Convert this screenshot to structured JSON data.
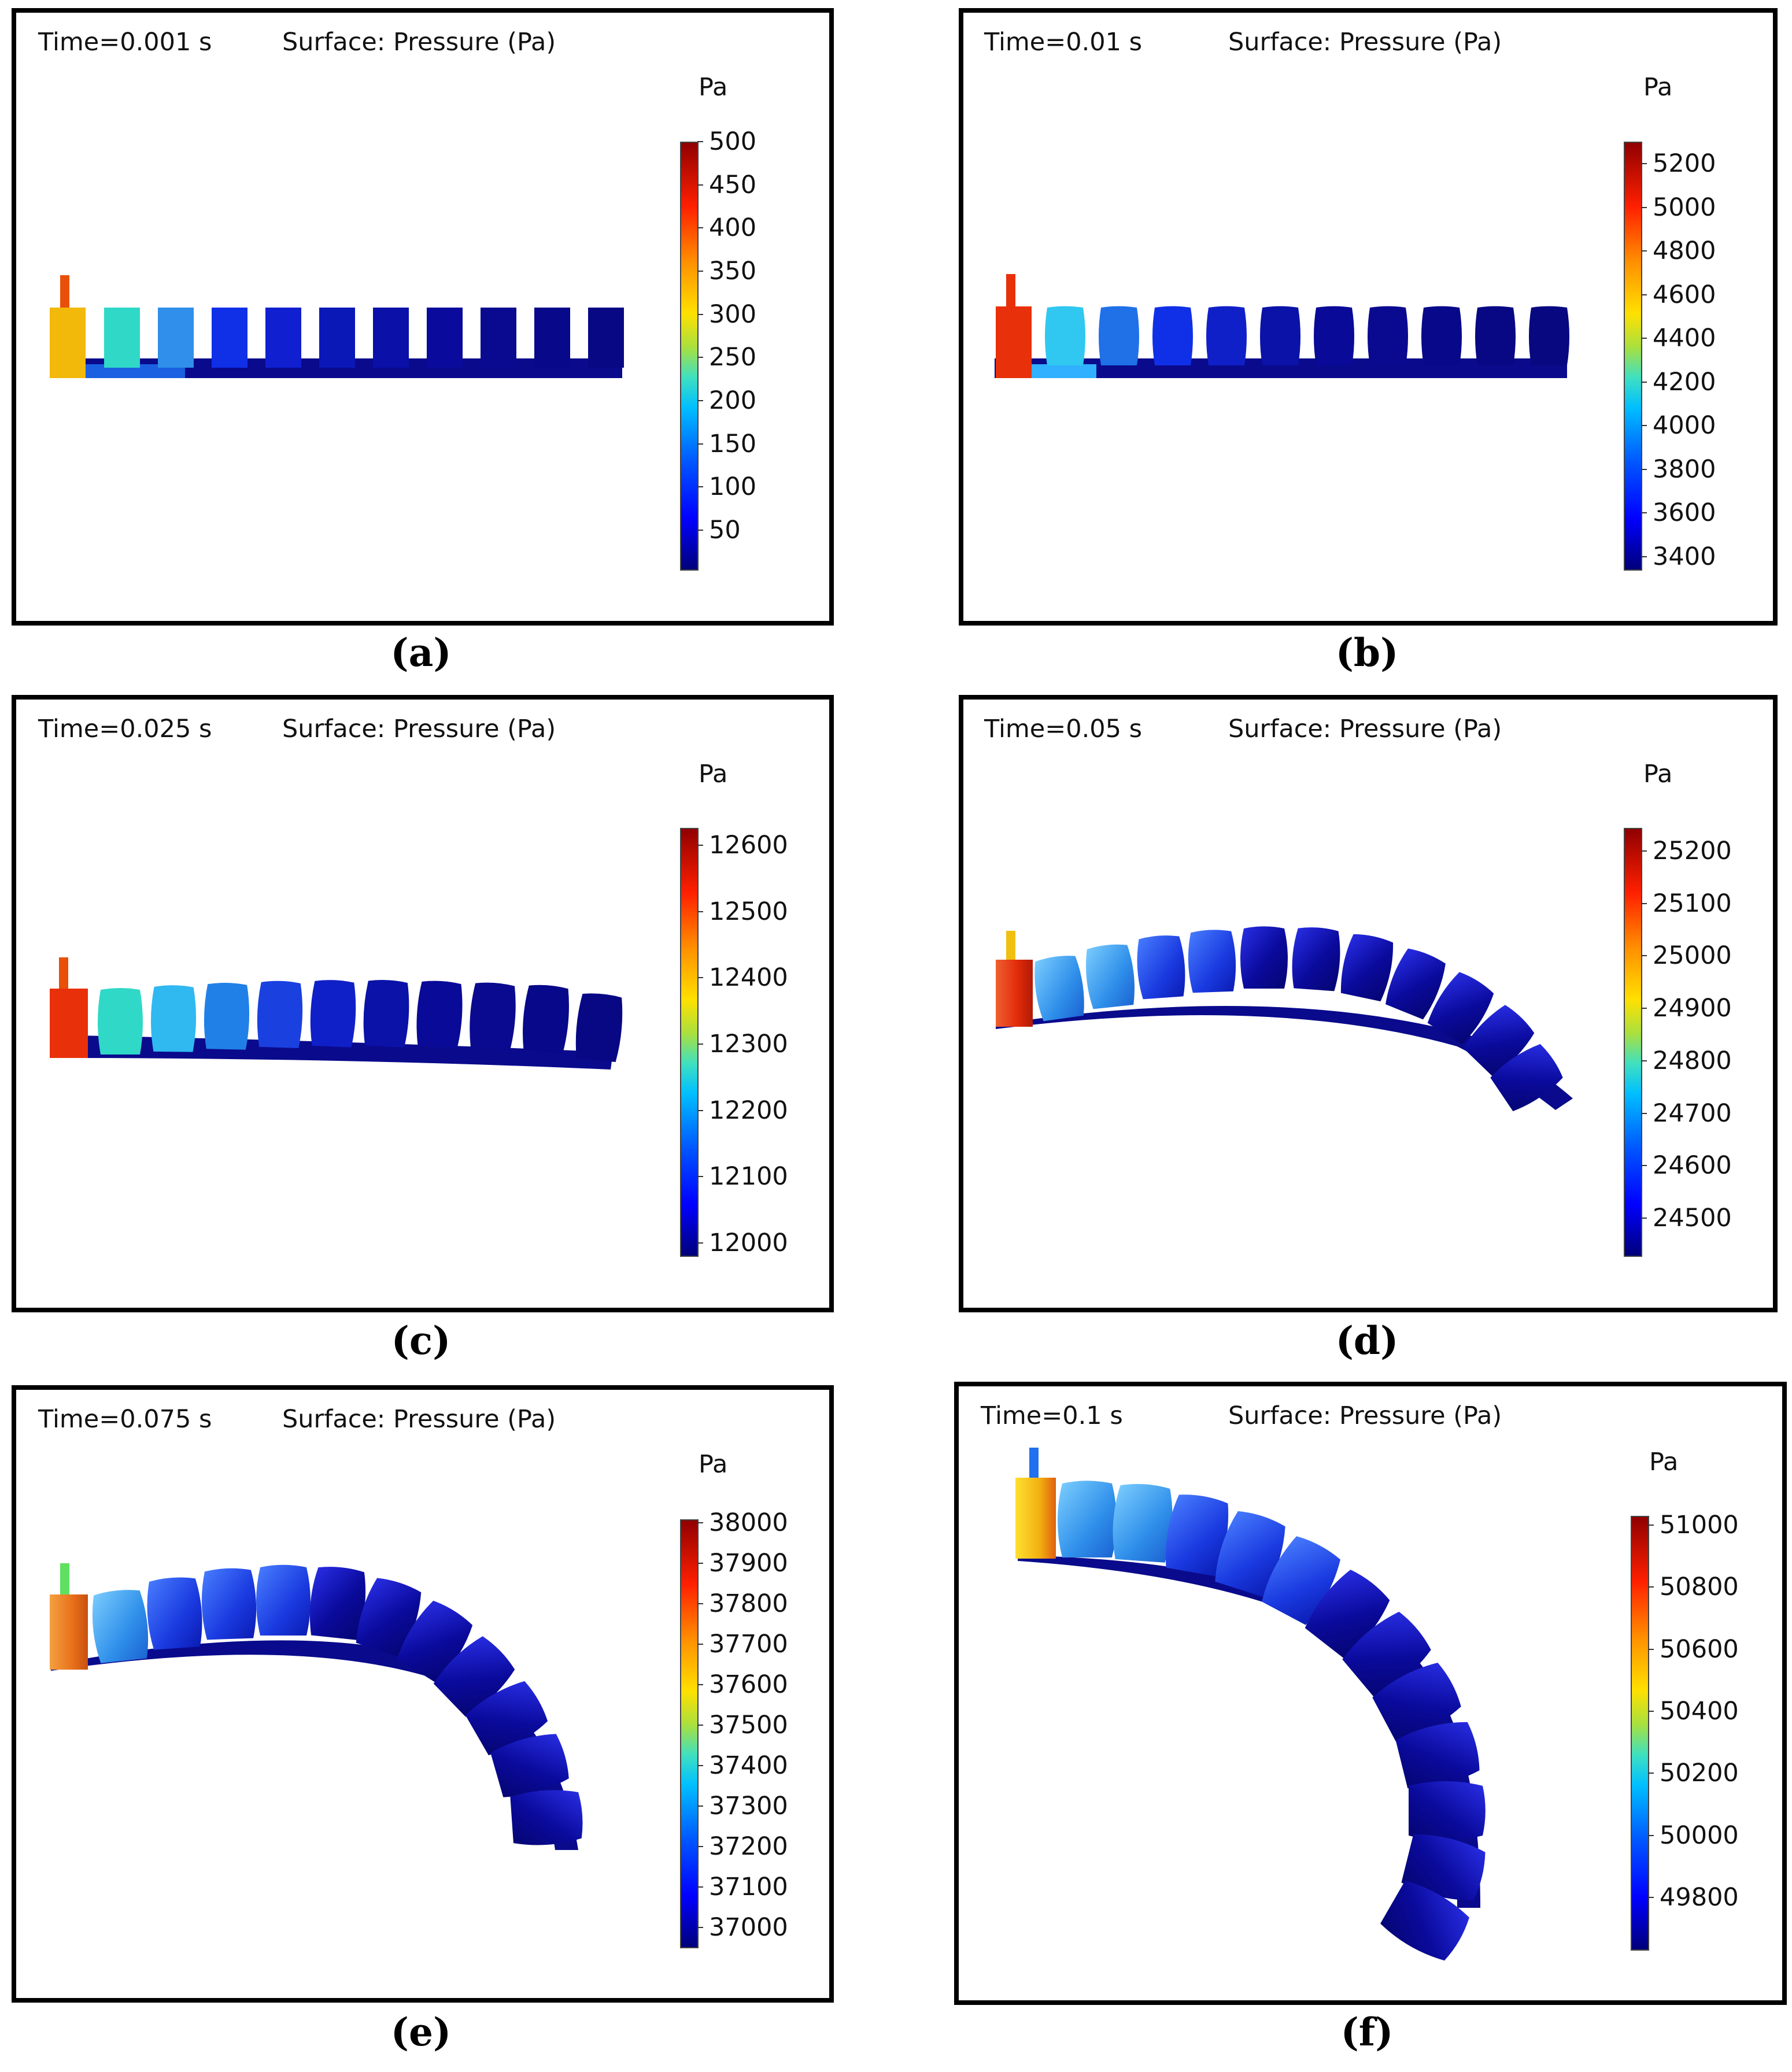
{
  "figure": {
    "surface_label": "Surface: Pressure (Pa)",
    "unit_label": "Pa",
    "panels": [
      {
        "id": "a",
        "caption": "(a)",
        "time": "Time=0.001 s",
        "ticks": [
          "500",
          "450",
          "400",
          "350",
          "300",
          "250",
          "200",
          "150",
          "100",
          "50"
        ]
      },
      {
        "id": "b",
        "caption": "(b)",
        "time": "Time=0.01 s",
        "ticks": [
          "5200",
          "5000",
          "4800",
          "4600",
          "4400",
          "4200",
          "4000",
          "3800",
          "3600",
          "3400"
        ]
      },
      {
        "id": "c",
        "caption": "(c)",
        "time": "Time=0.025 s",
        "ticks": [
          "12600",
          "12500",
          "12400",
          "12300",
          "12200",
          "12100",
          "12000"
        ]
      },
      {
        "id": "d",
        "caption": "(d)",
        "time": "Time=0.05 s",
        "ticks": [
          "25200",
          "25100",
          "25000",
          "24900",
          "24800",
          "24700",
          "24600",
          "24500"
        ]
      },
      {
        "id": "e",
        "caption": "(e)",
        "time": "Time=0.075 s",
        "ticks": [
          "38000",
          "37900",
          "37800",
          "37700",
          "37600",
          "37500",
          "37400",
          "37300",
          "37200",
          "37100",
          "37000"
        ]
      },
      {
        "id": "f",
        "caption": "(f)",
        "time": "Time=0.1 s",
        "ticks": [
          "51000",
          "50800",
          "50600",
          "50400",
          "50200",
          "50000",
          "49800"
        ]
      }
    ]
  },
  "colors": {
    "deep_blue": "#0a0a8c",
    "blue": "#1030e0",
    "light_blue": "#2f8fea",
    "cyan": "#30d8c8",
    "red": "#e8280a",
    "orange": "#f08a10",
    "yellow": "#f2c010"
  }
}
